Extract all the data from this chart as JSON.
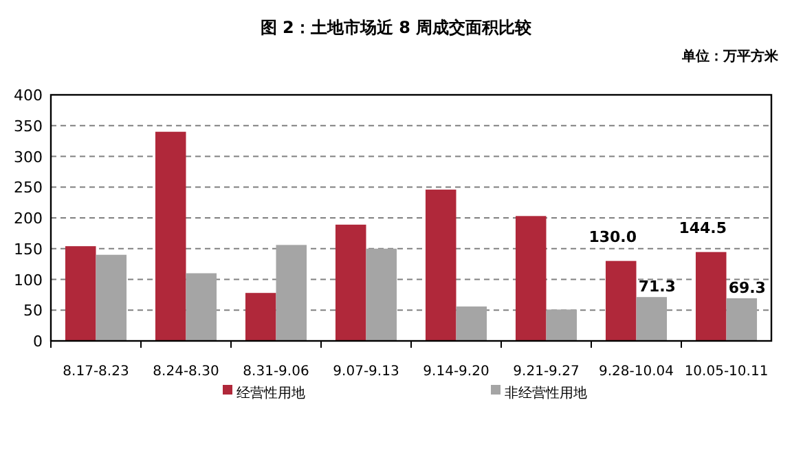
{
  "chart_data": {
    "type": "bar",
    "title": "图 2：土地市场近 8 周成交面积比较",
    "subtitle": "单位：万平方米",
    "categories": [
      "8.17-8.23",
      "8.24-8.30",
      "8.31-9.06",
      "9.07-9.13",
      "9.14-9.20",
      "9.21-9.27",
      "9.28-10.04",
      "10.05-10.11"
    ],
    "series": [
      {
        "name": "经营性用地",
        "color": "#b0283a",
        "values": [
          154,
          340,
          78,
          189,
          246,
          203,
          130.0,
          144.5
        ],
        "value_labels": [
          null,
          null,
          null,
          null,
          null,
          null,
          "130.0",
          "144.5"
        ]
      },
      {
        "name": "非经营性用地",
        "color": "#a5a5a5",
        "values": [
          140,
          110,
          156,
          150,
          56,
          51,
          71.3,
          69.3
        ],
        "value_labels": [
          null,
          null,
          null,
          null,
          null,
          null,
          "71.3",
          "69.3"
        ]
      }
    ],
    "ylim": [
      0,
      400
    ],
    "yticks": [
      0,
      50,
      100,
      150,
      200,
      250,
      300,
      350,
      400
    ],
    "grid": "y",
    "legend": "bottom"
  }
}
